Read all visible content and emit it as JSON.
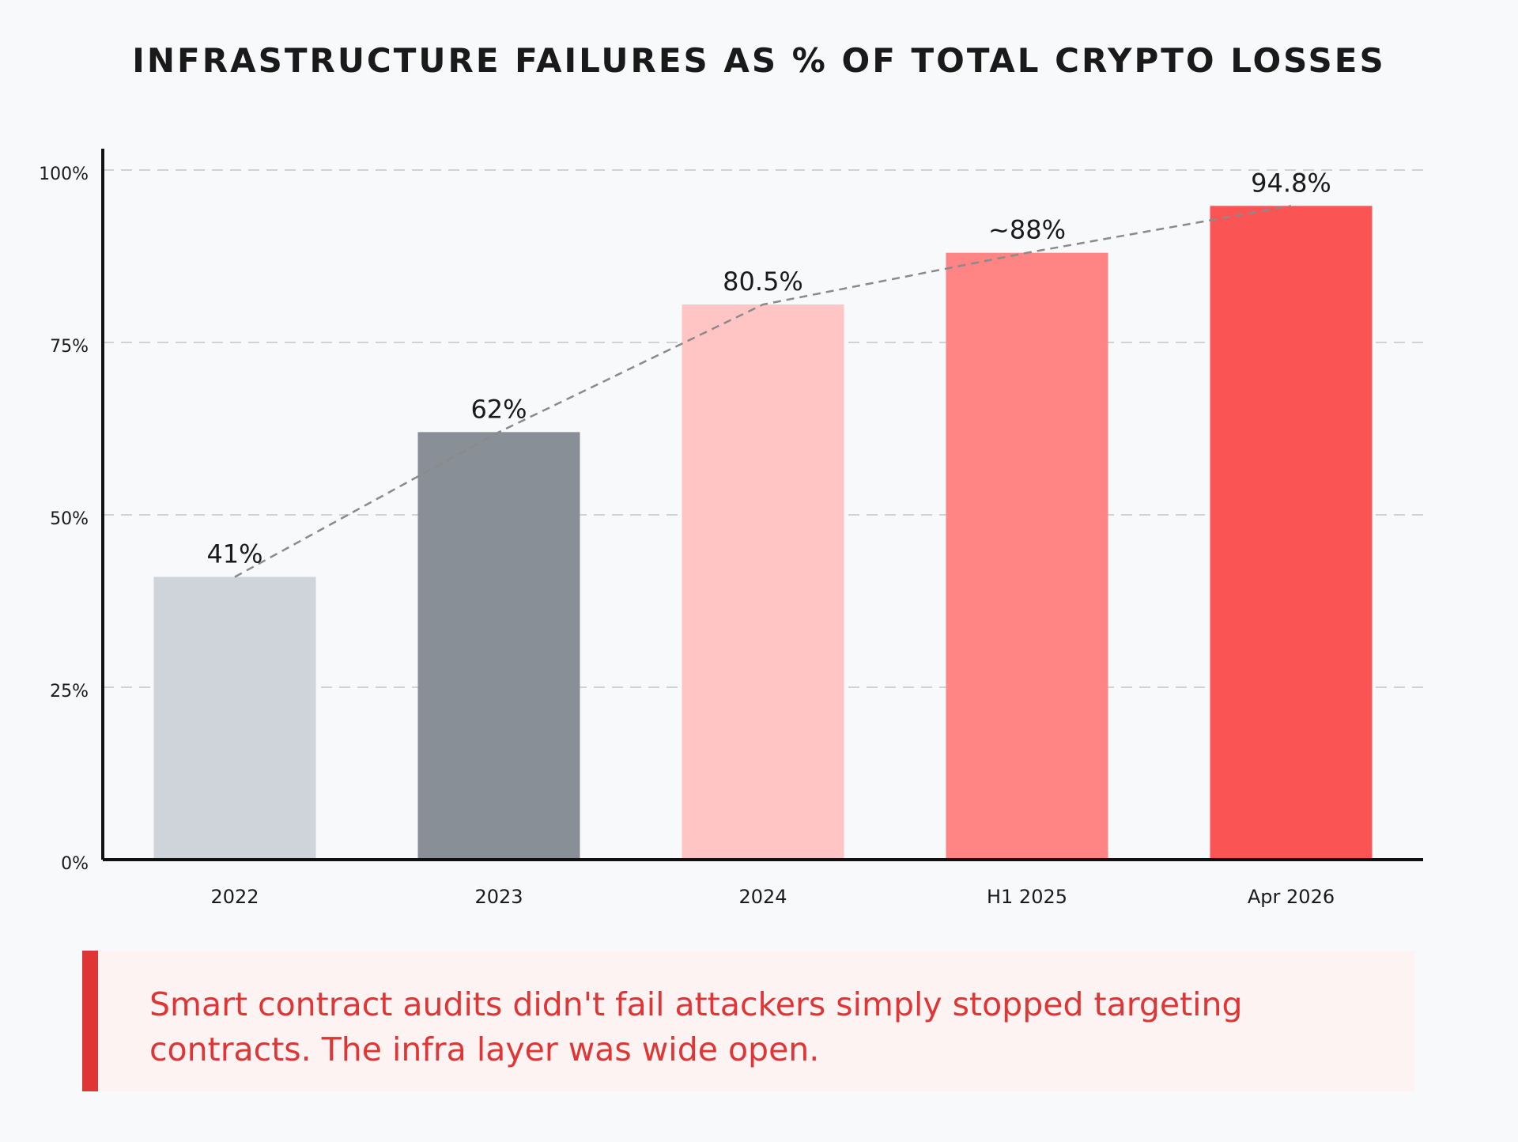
{
  "chart_data": {
    "type": "bar",
    "title": "INFRASTRUCTURE FAILURES AS % OF TOTAL CRYPTO LOSSES",
    "categories": [
      "2022",
      "2023",
      "2024",
      "H1 2025",
      "Apr 2026"
    ],
    "values": [
      41,
      62,
      80.5,
      88,
      94.8
    ],
    "data_labels": [
      "41%",
      "62%",
      "80.5%",
      "~88%",
      "94.8%"
    ],
    "bar_colors": [
      "#cfd4db",
      "#888f96",
      "#ffc5c5",
      "#ff8585",
      "#fa5454"
    ],
    "trend_line": {
      "style": "dashed",
      "color": "#8a8a8a"
    },
    "ylim": [
      0,
      100
    ],
    "yticks": [
      0,
      25,
      50,
      75,
      100
    ],
    "ytick_labels": [
      "0%",
      "25%",
      "50%",
      "75%",
      "100%"
    ],
    "grid": true,
    "xlabel": "",
    "ylabel": ""
  },
  "callout": {
    "text": "Smart contract audits didn't fail attackers simply stopped targeting contracts. The infra layer was wide open.",
    "accent_color": "#e03535"
  }
}
